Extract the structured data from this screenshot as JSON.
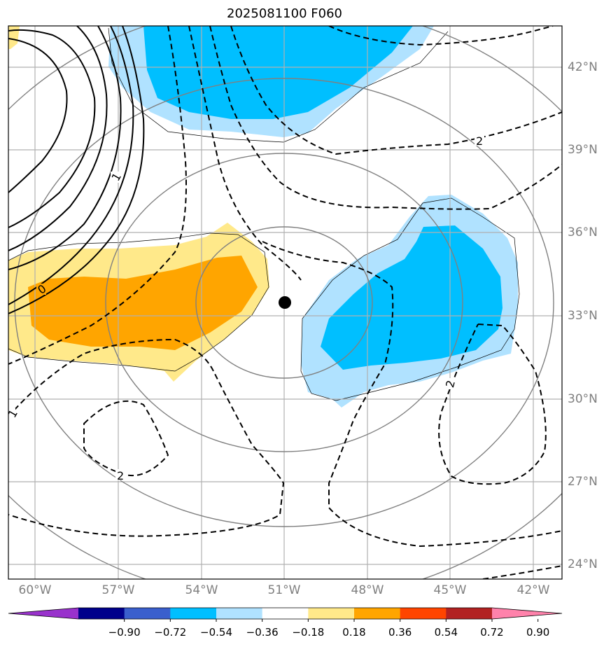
{
  "title": "2025081100 F060",
  "lat_labels": [
    "42°N",
    "39°N",
    "36°N",
    "33°N",
    "30°N",
    "27°N",
    "24°N"
  ],
  "lon_labels": [
    "60°W",
    "57°W",
    "54°W",
    "51°W",
    "48°W",
    "45°W",
    "42°W"
  ],
  "contour_labels": [
    "1",
    "0",
    "2",
    "2",
    "1",
    "2"
  ],
  "colorbar": {
    "ticks": [
      "−0.90",
      "−0.72",
      "−0.54",
      "−0.36",
      "−0.18",
      "0.18",
      "0.36",
      "0.54",
      "0.72",
      "0.90"
    ],
    "colors": [
      "#9932cc",
      "#00008b",
      "#3a5fcd",
      "#00bfff",
      "#b0e2ff",
      "#ffffff",
      "#ffe98a",
      "#ffa500",
      "#ff4500",
      "#b22222",
      "#ff82ab"
    ]
  },
  "center_marker": {
    "lon": -51.0,
    "lat": 33.5
  },
  "colors": {
    "cyan": "#00bfff",
    "light_blue": "#b0e2ff",
    "yellow": "#ffe98a",
    "orange": "#ffa500",
    "grid": "#b0b0b0",
    "range_rings": "#808080",
    "contour": "#000000"
  }
}
